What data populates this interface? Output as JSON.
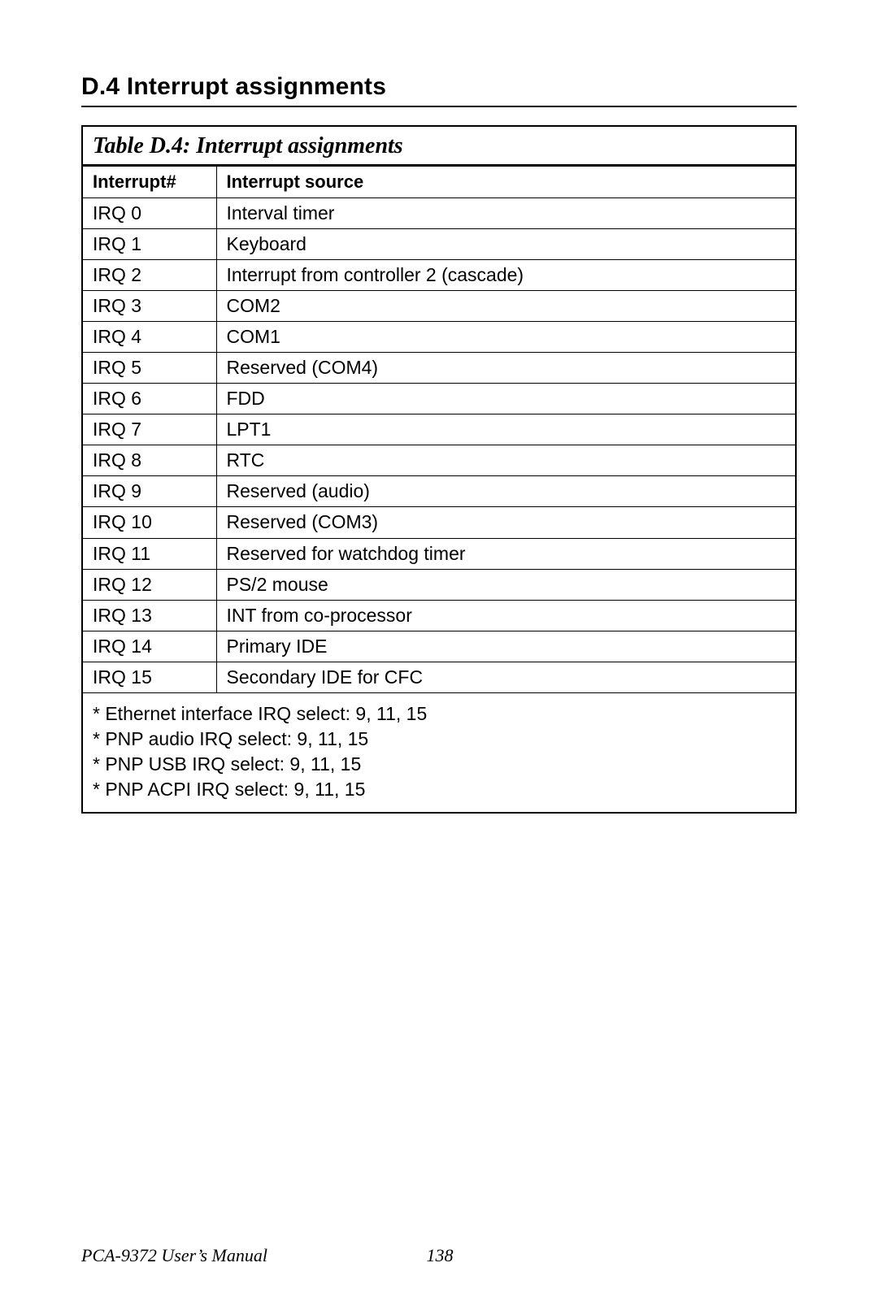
{
  "heading": "D.4  Interrupt assignments",
  "table": {
    "caption": "Table D.4: Interrupt assignments",
    "columns": {
      "irq": "Interrupt#",
      "source": "Interrupt source"
    },
    "rows": [
      {
        "irq": "IRQ 0",
        "source": "Interval timer"
      },
      {
        "irq": "IRQ 1",
        "source": "Keyboard"
      },
      {
        "irq": "IRQ 2",
        "source": "Interrupt from controller 2 (cascade)"
      },
      {
        "irq": "IRQ 3",
        "source": "COM2"
      },
      {
        "irq": "IRQ 4",
        "source": "COM1"
      },
      {
        "irq": "IRQ 5",
        "source": "Reserved (COM4)"
      },
      {
        "irq": "IRQ 6",
        "source": "FDD"
      },
      {
        "irq": "IRQ 7",
        "source": "LPT1"
      },
      {
        "irq": "IRQ 8",
        "source": "RTC"
      },
      {
        "irq": "IRQ 9",
        "source": "Reserved (audio)"
      },
      {
        "irq": "IRQ 10",
        "source": "Reserved (COM3)"
      },
      {
        "irq": "IRQ 11",
        "source": "Reserved for watchdog timer"
      },
      {
        "irq": "IRQ 12",
        "source": "PS/2 mouse"
      },
      {
        "irq": "IRQ 13",
        "source": "INT from co-processor"
      },
      {
        "irq": "IRQ 14",
        "source": "Primary IDE"
      },
      {
        "irq": "IRQ 15",
        "source": "Secondary IDE for CFC"
      }
    ],
    "notes": [
      "* Ethernet interface IRQ select: 9, 11, 15",
      "* PNP audio IRQ select: 9, 11, 15",
      "* PNP USB IRQ select: 9, 11, 15",
      "* PNP ACPI IRQ select: 9, 11, 15"
    ]
  },
  "footer": {
    "manual": "PCA-9372 User’s Manual",
    "page": "138"
  }
}
